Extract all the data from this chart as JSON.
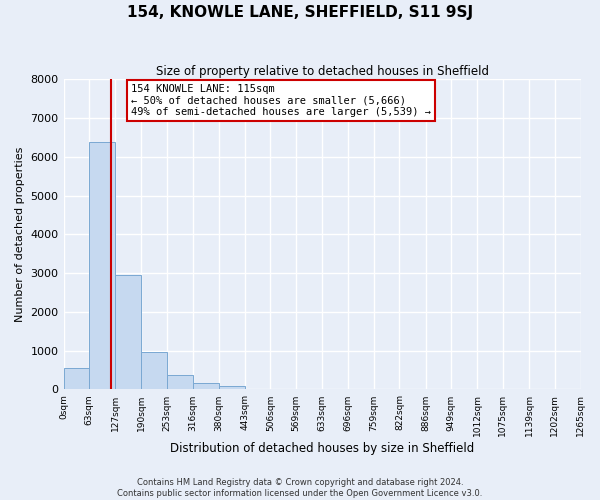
{
  "title": "154, KNOWLE LANE, SHEFFIELD, S11 9SJ",
  "subtitle": "Size of property relative to detached houses in Sheffield",
  "xlabel": "Distribution of detached houses by size in Sheffield",
  "ylabel": "Number of detached properties",
  "bin_edges": [
    0,
    63,
    127,
    190,
    253,
    316,
    380,
    443,
    506,
    569,
    633,
    696,
    759,
    822,
    886,
    949,
    1012,
    1075,
    1139,
    1202,
    1265
  ],
  "bin_labels": [
    "0sqm",
    "63sqm",
    "127sqm",
    "190sqm",
    "253sqm",
    "316sqm",
    "380sqm",
    "443sqm",
    "506sqm",
    "569sqm",
    "633sqm",
    "696sqm",
    "759sqm",
    "822sqm",
    "886sqm",
    "949sqm",
    "1012sqm",
    "1075sqm",
    "1139sqm",
    "1202sqm",
    "1265sqm"
  ],
  "bar_heights": [
    550,
    6380,
    2960,
    960,
    380,
    165,
    80,
    0,
    0,
    0,
    0,
    0,
    0,
    0,
    0,
    0,
    0,
    0,
    0,
    0
  ],
  "bar_color": "#c6d9f0",
  "bar_edgecolor": "#7aa8d2",
  "vline_x": 115,
  "vline_color": "#cc0000",
  "ylim": [
    0,
    8000
  ],
  "yticks": [
    0,
    1000,
    2000,
    3000,
    4000,
    5000,
    6000,
    7000,
    8000
  ],
  "annotation_title": "154 KNOWLE LANE: 115sqm",
  "annotation_line1": "← 50% of detached houses are smaller (5,666)",
  "annotation_line2": "49% of semi-detached houses are larger (5,539) →",
  "footer_line1": "Contains HM Land Registry data © Crown copyright and database right 2024.",
  "footer_line2": "Contains public sector information licensed under the Open Government Licence v3.0.",
  "background_color": "#e8eef8",
  "grid_color": "#ffffff"
}
